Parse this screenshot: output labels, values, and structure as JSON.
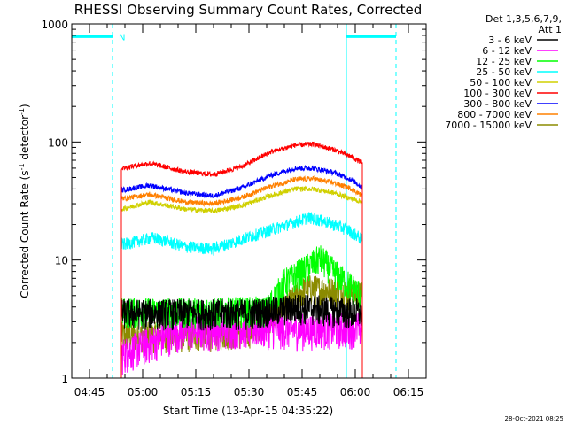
{
  "chart_data": {
    "type": "line",
    "title": "RHESSI Observing Summary Count Rates, Corrected",
    "xlabel": "Start Time (13-Apr-15 04:35:22)",
    "ylabel_parts": [
      "Corrected Count Rate (s",
      "-1",
      " detector",
      "-1",
      ")"
    ],
    "y_scale": "log",
    "ylim": [
      1,
      1000
    ],
    "xlim_min": [
      0,
      100
    ],
    "x_ticks": [
      {
        "t": 5,
        "label": "04:45"
      },
      {
        "t": 20,
        "label": "05:00"
      },
      {
        "t": 35,
        "label": "05:15"
      },
      {
        "t": 50,
        "label": "05:30"
      },
      {
        "t": 65,
        "label": "05:45"
      },
      {
        "t": 80,
        "label": "06:00"
      },
      {
        "t": 95,
        "label": "06:15"
      }
    ],
    "y_ticks": [
      {
        "v": 1,
        "label": "1"
      },
      {
        "v": 10,
        "label": "10"
      },
      {
        "v": 100,
        "label": "100"
      },
      {
        "v": 1000,
        "label": "1000"
      }
    ],
    "legend": {
      "header": [
        "Det 1,3,5,6,7,9,",
        "Att 1"
      ],
      "placement": "right"
    },
    "annotations": {
      "night_marker": "N",
      "night_bar_level": 780,
      "night_segments_min": [
        [
          0,
          11.5
        ],
        [
          77.5,
          91.5
        ]
      ],
      "dashed_markers_min": [
        11.5,
        91.5
      ],
      "solid_markers_min": [
        0,
        77.5
      ]
    },
    "footer": "28-Oct-2021 08:25",
    "series": [
      {
        "name": "3 - 6 keV",
        "color": "#000000",
        "noise": 0.3,
        "points": [
          [
            14,
            3.6
          ],
          [
            30,
            3.6
          ],
          [
            50,
            3.6
          ],
          [
            64,
            4.0
          ],
          [
            82,
            3.6
          ]
        ]
      },
      {
        "name": "6 - 12 keV",
        "color": "#ff00ff",
        "noise": 0.35,
        "points": [
          [
            14,
            1.6
          ],
          [
            30,
            2.5
          ],
          [
            50,
            2.7
          ],
          [
            64,
            2.6
          ],
          [
            82,
            2.7
          ]
        ]
      },
      {
        "name": "12 - 25 keV",
        "color": "#00ff00",
        "noise": 0.3,
        "points": [
          [
            14,
            3.7
          ],
          [
            40,
            3.7
          ],
          [
            55,
            3.8
          ],
          [
            60,
            6.5
          ],
          [
            66,
            8.5
          ],
          [
            70,
            10.5
          ],
          [
            75,
            7.5
          ],
          [
            82,
            5.0
          ]
        ]
      },
      {
        "name": "25 - 50 keV",
        "color": "#00ffff",
        "noise": 0.12,
        "points": [
          [
            14,
            13.5
          ],
          [
            23,
            15.5
          ],
          [
            32,
            13
          ],
          [
            40,
            12.5
          ],
          [
            48,
            15
          ],
          [
            56,
            18
          ],
          [
            63,
            21
          ],
          [
            67,
            23
          ],
          [
            72,
            21
          ],
          [
            78,
            18
          ],
          [
            82,
            15
          ]
        ]
      },
      {
        "name": "50 - 100 keV",
        "color": "#d0d000",
        "noise": 0.05,
        "points": [
          [
            14,
            27
          ],
          [
            22,
            31
          ],
          [
            32,
            27
          ],
          [
            40,
            26
          ],
          [
            48,
            29
          ],
          [
            56,
            35
          ],
          [
            63,
            40
          ],
          [
            68,
            40
          ],
          [
            74,
            37
          ],
          [
            79,
            33
          ],
          [
            82,
            31
          ]
        ]
      },
      {
        "name": "100 - 300 keV",
        "color": "#ff0000",
        "noise": 0.05,
        "points": [
          [
            14,
            60
          ],
          [
            22,
            66
          ],
          [
            32,
            56
          ],
          [
            40,
            53
          ],
          [
            48,
            62
          ],
          [
            56,
            82
          ],
          [
            63,
            94
          ],
          [
            68,
            96
          ],
          [
            74,
            86
          ],
          [
            79,
            75
          ],
          [
            82,
            66
          ]
        ]
      },
      {
        "name": "300 - 800 keV",
        "color": "#0000ff",
        "noise": 0.05,
        "points": [
          [
            14,
            39
          ],
          [
            22,
            43
          ],
          [
            32,
            37
          ],
          [
            40,
            35
          ],
          [
            48,
            41
          ],
          [
            56,
            52
          ],
          [
            63,
            60
          ],
          [
            68,
            60
          ],
          [
            74,
            55
          ],
          [
            79,
            48
          ],
          [
            82,
            41
          ]
        ]
      },
      {
        "name": "800 - 7000 keV",
        "color": "#ff8000",
        "noise": 0.05,
        "points": [
          [
            14,
            33
          ],
          [
            22,
            36
          ],
          [
            32,
            31
          ],
          [
            40,
            30
          ],
          [
            48,
            34
          ],
          [
            56,
            42
          ],
          [
            63,
            48
          ],
          [
            68,
            49
          ],
          [
            74,
            45
          ],
          [
            79,
            40
          ],
          [
            82,
            35
          ]
        ]
      },
      {
        "name": "7000 - 15000 keV",
        "color": "#8b8b00",
        "noise": 0.3,
        "points": [
          [
            14,
            2.3
          ],
          [
            30,
            2.3
          ],
          [
            50,
            2.5
          ],
          [
            62,
            4.5
          ],
          [
            66,
            5.8
          ],
          [
            75,
            5.5
          ],
          [
            82,
            5.0
          ]
        ]
      }
    ]
  }
}
